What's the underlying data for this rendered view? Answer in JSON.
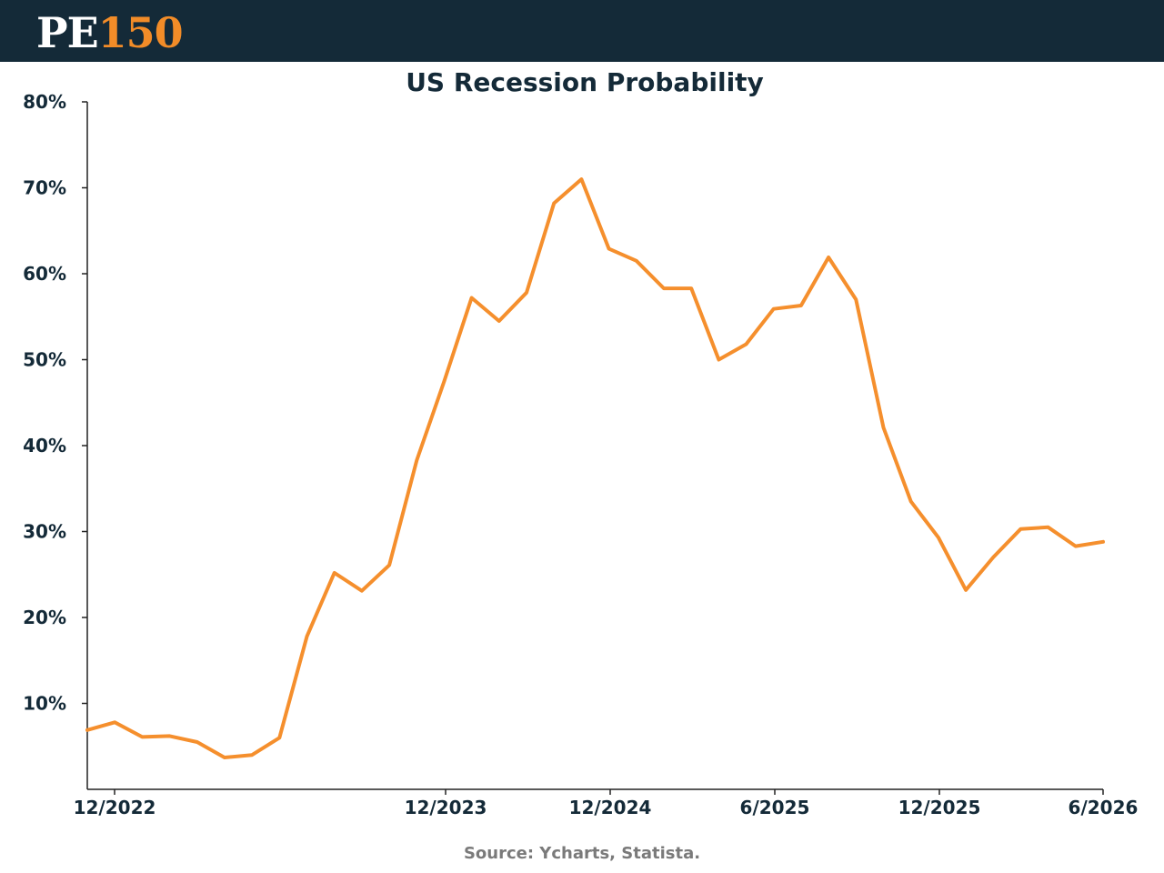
{
  "header": {
    "logo_text_white": "PE",
    "logo_text_orange": "150",
    "background_color": "#142a38",
    "accent_color": "#f28c28"
  },
  "chart_data": {
    "type": "line",
    "title": "US Recession Probability",
    "xlabel": "",
    "ylabel": "",
    "ylim": [
      0,
      80
    ],
    "y_ticks": [
      "10%",
      "20%",
      "30%",
      "40%",
      "50%",
      "60%",
      "70%",
      "80%"
    ],
    "x_ticks": [
      "12/2022",
      "12/2023",
      "12/2024",
      "6/2025",
      "12/2025",
      "6/2026"
    ],
    "grid": false,
    "line_color": "#f58f2d",
    "series": [
      {
        "values": [
          6.9,
          7.8,
          6.1,
          6.2,
          5.5,
          3.7,
          4.0,
          6.0,
          17.8,
          25.2,
          23.1,
          26.1,
          38.3,
          47.5,
          57.2,
          54.5,
          57.8,
          68.2,
          71.0,
          62.9,
          61.5,
          58.3,
          58.3,
          50.0,
          51.8,
          55.9,
          56.3,
          61.9,
          57.0,
          42.1,
          33.5,
          29.3,
          23.2,
          27.0,
          30.3,
          30.5,
          28.3,
          28.8
        ]
      }
    ]
  },
  "source": "Source: Ycharts, Statista."
}
